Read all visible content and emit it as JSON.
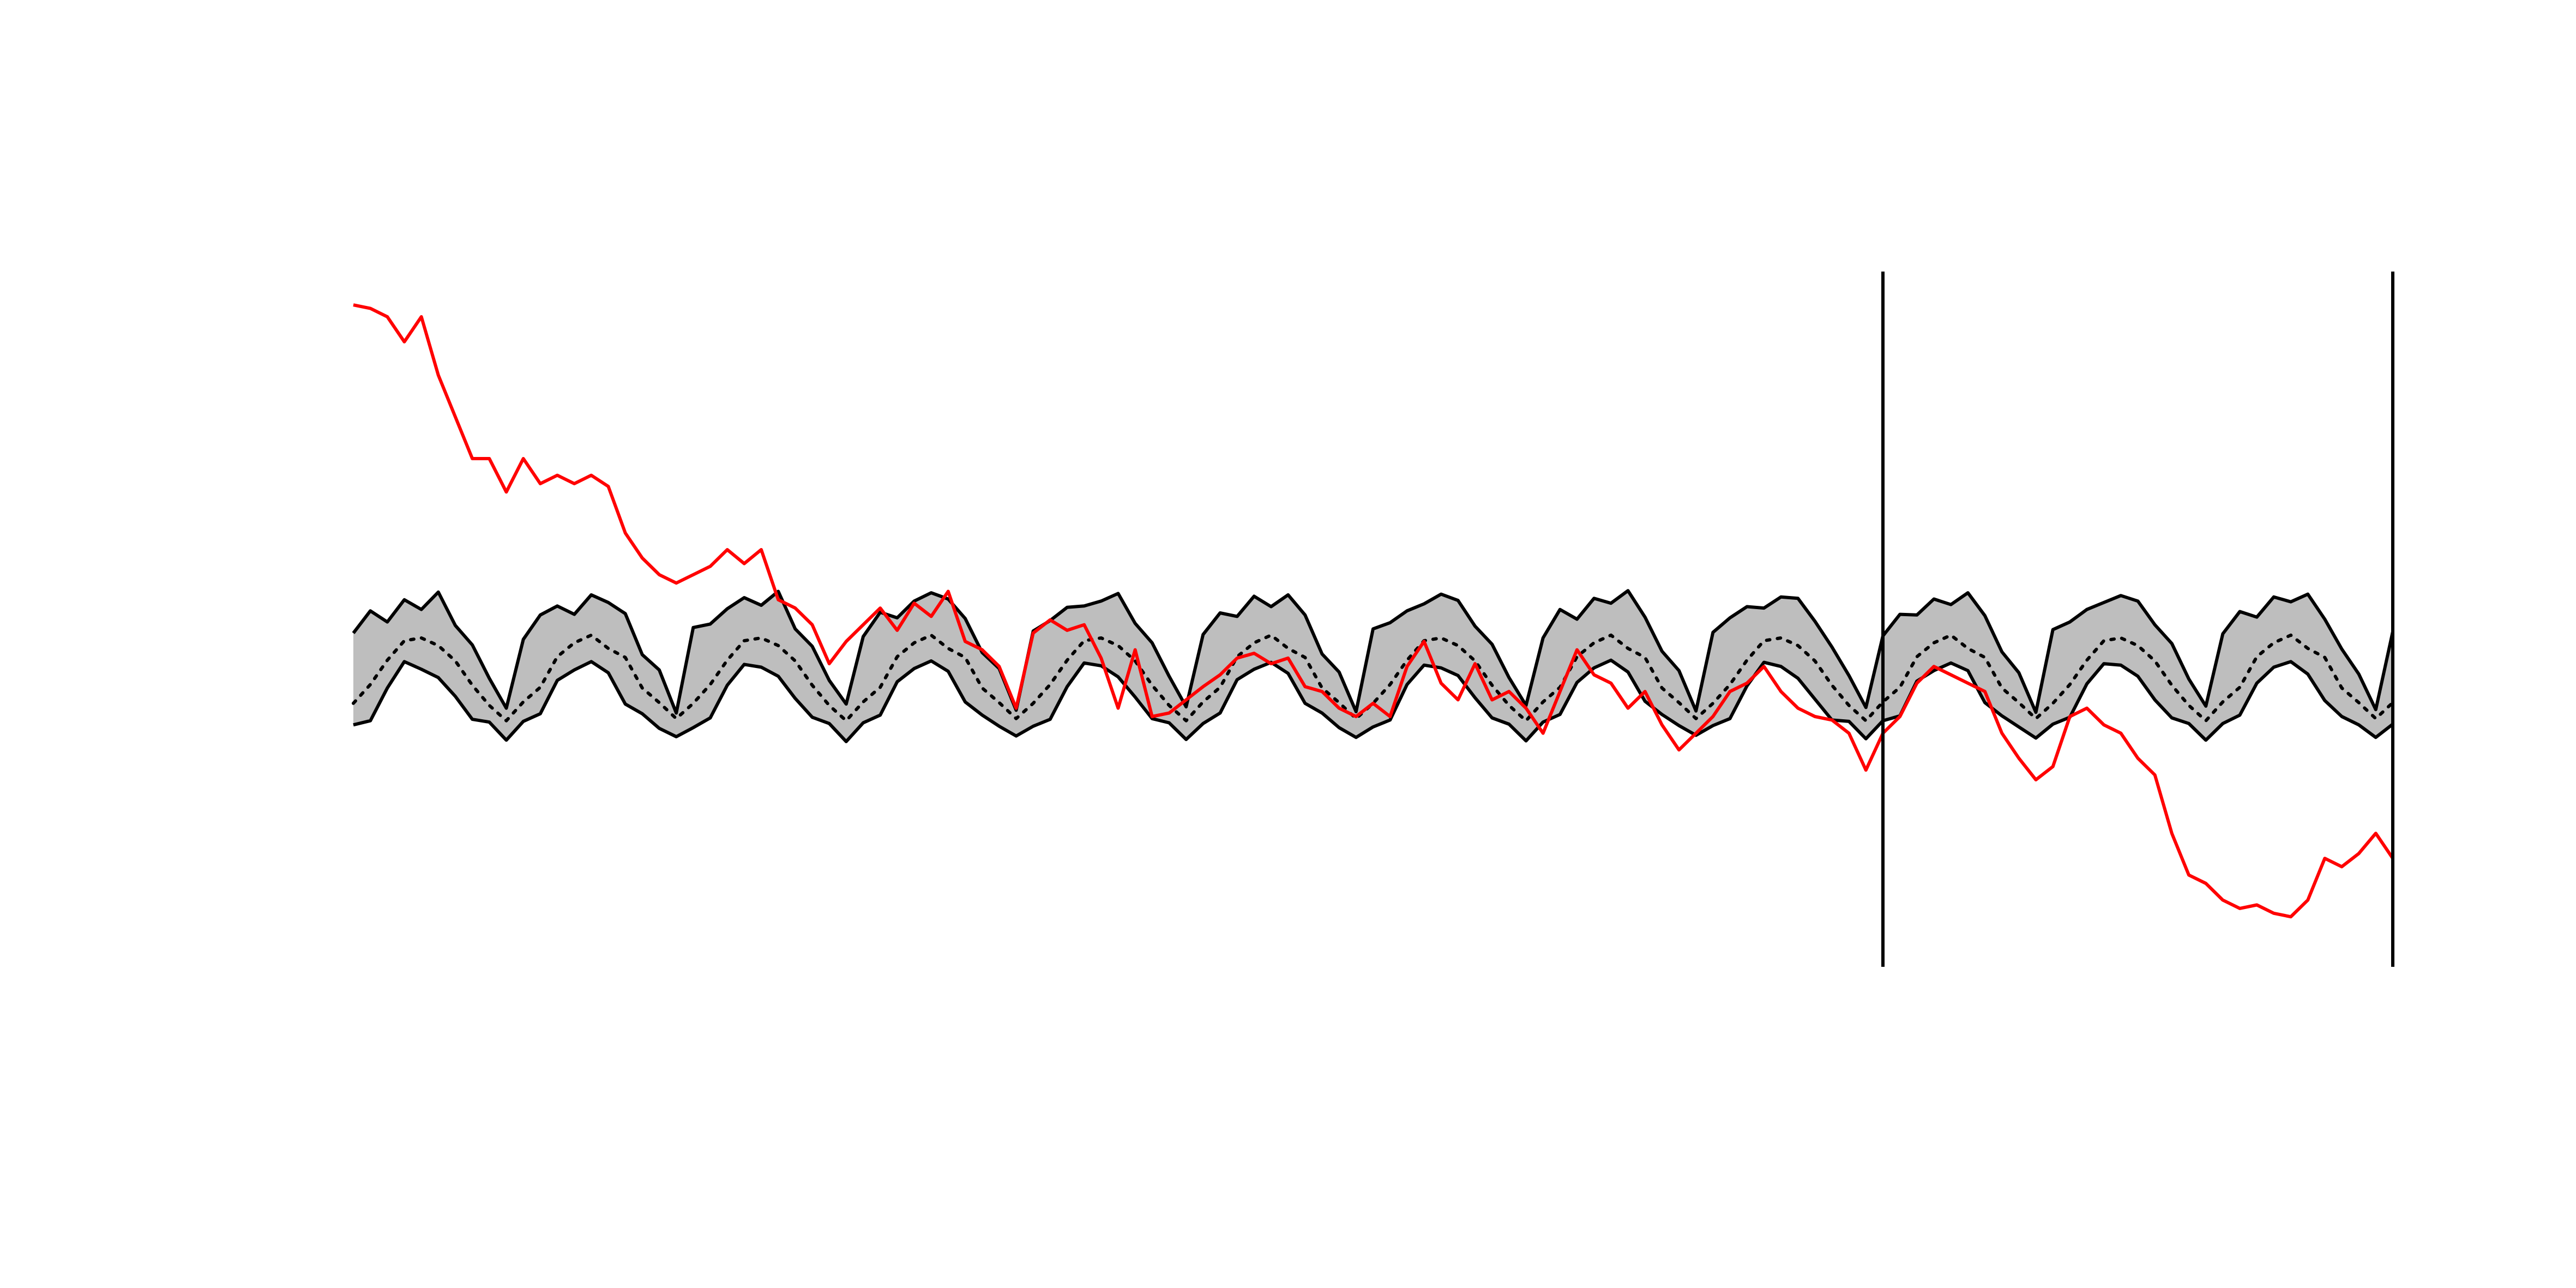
{
  "chart_data": {
    "type": "line",
    "x": [
      0,
      1,
      2,
      3,
      4,
      5,
      6,
      7,
      8,
      9,
      10,
      11,
      12,
      13,
      14,
      15,
      16,
      17,
      18,
      19,
      20,
      21,
      22,
      23,
      24,
      25,
      26,
      27,
      28,
      29,
      30,
      31,
      32,
      33,
      34,
      35,
      36,
      37,
      38,
      39,
      40,
      41,
      42,
      43,
      44,
      45,
      46,
      47,
      48,
      49,
      50,
      51,
      52,
      53,
      54,
      55,
      56,
      57,
      58,
      59,
      60,
      61,
      62,
      63,
      64,
      65,
      66,
      67,
      68,
      69,
      70,
      71,
      72,
      73,
      74,
      75,
      76,
      77,
      78,
      79,
      80,
      81,
      82,
      83,
      84,
      85,
      86,
      87,
      88,
      89,
      90,
      91,
      92,
      93,
      94,
      95,
      96,
      97,
      98,
      99,
      100,
      101,
      102,
      103,
      104,
      105,
      106,
      107,
      108,
      109,
      110,
      111,
      112,
      113,
      114,
      115,
      116,
      117,
      118,
      119,
      120
    ],
    "xlim": [
      0,
      120
    ],
    "ylim": [
      0,
      100
    ],
    "band": {
      "fill": "#bebebe",
      "color": "#000000",
      "upper": [
        48.0,
        51.2,
        49.6,
        52.8,
        51.4,
        53.9,
        49.1,
        46.3,
        41.5,
        37.2,
        47.1,
        50.6,
        51.9,
        50.7,
        53.5,
        52.4,
        50.8,
        44.9,
        42.7,
        36.5,
        48.8,
        49.3,
        51.5,
        53.1,
        52.0,
        54.0,
        48.6,
        46.1,
        41.2,
        37.8,
        47.5,
        51.0,
        50.2,
        52.6,
        53.8,
        52.9,
        50.1,
        45.2,
        42.9,
        36.9,
        48.3,
        49.8,
        51.7,
        51.9,
        52.6,
        53.7,
        49.4,
        46.6,
        41.8,
        37.4,
        47.8,
        50.9,
        50.4,
        53.3,
        51.8,
        53.5,
        50.6,
        45.0,
        42.4,
        36.7,
        48.6,
        49.5,
        51.2,
        52.2,
        53.6,
        52.7,
        49.0,
        46.4,
        41.6,
        37.6,
        47.3,
        51.4,
        50.0,
        53.0,
        52.3,
        54.1,
        50.3,
        45.4,
        42.6,
        36.8,
        48.1,
        50.2,
        51.8,
        51.6,
        53.2,
        53.0,
        49.7,
        46.0,
        41.9,
        37.3,
        47.6,
        50.7,
        50.6,
        52.9,
        52.1,
        53.8,
        50.5,
        45.3,
        42.3,
        36.6,
        48.5,
        49.6,
        51.4,
        52.4,
        53.4,
        52.6,
        49.2,
        46.5,
        41.4,
        37.5,
        47.9,
        51.1,
        50.3,
        53.2,
        52.5,
        53.6,
        50.0,
        45.7,
        42.1,
        37.0,
        48.2
      ],
      "lower": [
        34.8,
        35.4,
        40.1,
        43.9,
        42.8,
        41.6,
        38.9,
        35.6,
        35.2,
        32.6,
        35.3,
        36.4,
        41.2,
        42.7,
        43.9,
        42.3,
        37.8,
        36.4,
        34.3,
        33.1,
        34.4,
        35.8,
        40.5,
        43.5,
        43.1,
        41.8,
        38.6,
        35.9,
        35.0,
        32.4,
        35.1,
        36.2,
        41.0,
        42.9,
        44.0,
        42.5,
        38.1,
        36.2,
        34.6,
        33.2,
        34.6,
        35.6,
        40.3,
        43.7,
        43.3,
        41.7,
        38.8,
        35.7,
        35.1,
        32.7,
        35.0,
        36.5,
        41.3,
        42.8,
        43.8,
        42.2,
        37.9,
        36.5,
        34.4,
        33.0,
        34.5,
        35.5,
        40.6,
        43.4,
        43.0,
        41.9,
        38.7,
        35.8,
        34.9,
        32.5,
        35.2,
        36.3,
        40.9,
        43.0,
        44.1,
        42.4,
        38.2,
        36.3,
        34.7,
        33.3,
        34.7,
        35.7,
        40.4,
        43.8,
        43.2,
        41.5,
        38.5,
        35.5,
        35.3,
        32.8,
        35.4,
        36.1,
        41.1,
        42.6,
        43.7,
        42.6,
        38.0,
        36.1,
        34.5,
        32.9,
        34.9,
        35.9,
        40.7,
        43.6,
        43.4,
        41.8,
        38.4,
        35.8,
        35.0,
        32.6,
        35.0,
        36.2,
        40.8,
        43.1,
        43.9,
        42.1,
        38.3,
        36.0,
        34.8,
        33.0,
        34.9
      ]
    },
    "series": [
      {
        "color": "#000000",
        "dash": "dotted",
        "values": [
          37.9,
          40.6,
          44.1,
          46.9,
          47.3,
          46.2,
          44.0,
          40.5,
          37.6,
          35.4,
          38.1,
          40.2,
          44.6,
          46.6,
          47.7,
          45.8,
          44.5,
          40.1,
          38.0,
          35.7,
          37.9,
          40.6,
          44.1,
          46.9,
          47.3,
          46.2,
          44.0,
          40.5,
          37.6,
          35.4,
          38.1,
          40.2,
          44.6,
          46.6,
          47.7,
          45.8,
          44.5,
          40.1,
          38.0,
          35.7,
          37.9,
          40.6,
          44.1,
          46.9,
          47.3,
          46.2,
          44.0,
          40.5,
          37.6,
          35.4,
          38.1,
          40.2,
          44.6,
          46.6,
          47.7,
          45.8,
          44.5,
          40.1,
          38.0,
          35.7,
          37.9,
          40.6,
          44.1,
          46.9,
          47.3,
          46.2,
          44.0,
          40.5,
          37.6,
          35.4,
          38.1,
          40.2,
          44.6,
          46.6,
          47.7,
          45.8,
          44.5,
          40.1,
          38.0,
          35.7,
          37.9,
          40.6,
          44.1,
          46.9,
          47.3,
          46.2,
          44.0,
          40.5,
          37.6,
          35.4,
          38.1,
          40.2,
          44.6,
          46.6,
          47.7,
          45.8,
          44.5,
          40.1,
          38.0,
          35.7,
          37.9,
          40.6,
          44.1,
          46.9,
          47.3,
          46.2,
          44.0,
          40.5,
          37.6,
          35.4,
          38.1,
          40.2,
          44.6,
          46.6,
          47.7,
          45.8,
          44.5,
          40.1,
          38.0,
          35.7,
          38.0
        ]
      },
      {
        "color": "#ff0000",
        "dash": "solid",
        "values": [
          95.2,
          94.7,
          93.5,
          89.9,
          93.5,
          85.1,
          79.1,
          73.1,
          73.1,
          68.3,
          73.1,
          69.5,
          70.7,
          69.5,
          70.7,
          69.1,
          62.4,
          58.8,
          56.4,
          55.2,
          56.4,
          57.6,
          60.0,
          58.0,
          60.0,
          52.8,
          51.6,
          49.2,
          43.6,
          46.8,
          49.2,
          51.6,
          48.4,
          52.3,
          50.4,
          54.0,
          46.8,
          45.6,
          43.2,
          37.2,
          48.0,
          49.9,
          48.4,
          49.2,
          44.4,
          37.2,
          45.6,
          36.0,
          36.5,
          38.4,
          40.3,
          42.0,
          44.4,
          45.1,
          43.6,
          44.4,
          40.3,
          39.6,
          37.2,
          36.0,
          37.9,
          36.0,
          43.2,
          46.8,
          40.8,
          38.4,
          43.6,
          38.4,
          39.6,
          37.2,
          33.6,
          39.6,
          45.6,
          42.0,
          40.8,
          37.2,
          39.6,
          34.8,
          31.2,
          33.6,
          36.0,
          39.6,
          40.8,
          43.2,
          39.6,
          37.2,
          36.0,
          35.5,
          33.6,
          28.3,
          33.6,
          36.0,
          40.8,
          43.2,
          42.0,
          40.8,
          39.6,
          33.6,
          30.0,
          26.9,
          28.8,
          36.0,
          37.2,
          34.8,
          33.6,
          30.0,
          27.6,
          19.2,
          13.2,
          12.0,
          9.6,
          8.4,
          8.9,
          7.7,
          7.2,
          9.6,
          15.6,
          14.4,
          16.3,
          19.2,
          15.6
        ]
      }
    ],
    "vlines": [
      90,
      120
    ],
    "vline_color": "#000000"
  }
}
